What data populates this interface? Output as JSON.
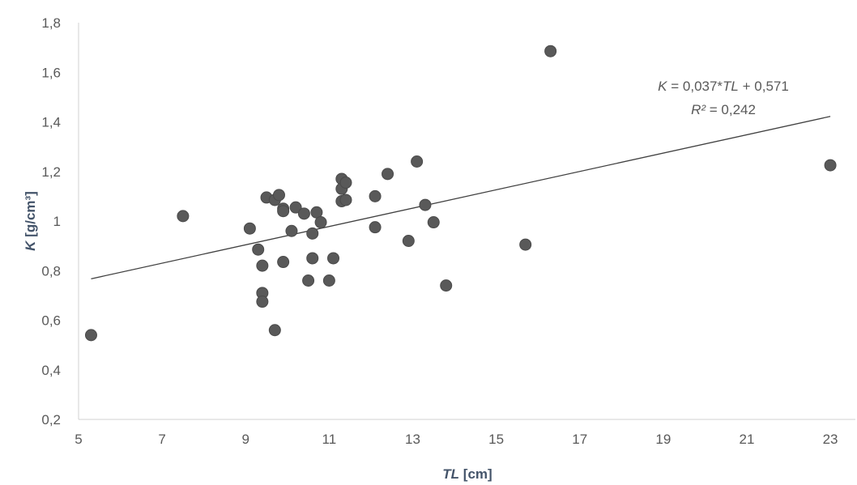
{
  "chart_data": {
    "type": "scatter",
    "xlabel": {
      "var": "TL",
      "unit": " [cm]"
    },
    "ylabel": {
      "var": "K",
      "unit": " [g/cm³]"
    },
    "xlim": [
      5,
      23.6
    ],
    "ylim": [
      0.2,
      1.8
    ],
    "x_ticks": [
      5,
      7,
      9,
      11,
      13,
      15,
      17,
      19,
      21,
      23
    ],
    "x_tick_labels": [
      "5",
      "7",
      "9",
      "11",
      "13",
      "15",
      "17",
      "19",
      "21",
      "23"
    ],
    "y_ticks": [
      0.2,
      0.4,
      0.6,
      0.8,
      1.0,
      1.2,
      1.4,
      1.6,
      1.8
    ],
    "y_tick_labels": [
      "0,2",
      "0,4",
      "0,6",
      "0,8",
      "1",
      "1,2",
      "1,4",
      "1,6",
      "1,8"
    ],
    "grid": false,
    "legend": "none",
    "marker_color": "#595959",
    "line_color": "#404040",
    "points": [
      {
        "x": 5.3,
        "y": 0.54
      },
      {
        "x": 7.5,
        "y": 1.02
      },
      {
        "x": 9.1,
        "y": 0.97
      },
      {
        "x": 9.3,
        "y": 0.885
      },
      {
        "x": 9.4,
        "y": 0.82
      },
      {
        "x": 9.4,
        "y": 0.71
      },
      {
        "x": 9.4,
        "y": 0.675
      },
      {
        "x": 9.5,
        "y": 1.095
      },
      {
        "x": 9.7,
        "y": 1.085
      },
      {
        "x": 9.7,
        "y": 0.56
      },
      {
        "x": 9.8,
        "y": 1.105
      },
      {
        "x": 9.9,
        "y": 1.05
      },
      {
        "x": 9.9,
        "y": 1.04
      },
      {
        "x": 9.9,
        "y": 0.835
      },
      {
        "x": 10.1,
        "y": 0.96
      },
      {
        "x": 10.2,
        "y": 1.055
      },
      {
        "x": 10.4,
        "y": 1.03
      },
      {
        "x": 10.5,
        "y": 0.76
      },
      {
        "x": 10.6,
        "y": 0.95
      },
      {
        "x": 10.6,
        "y": 0.85
      },
      {
        "x": 10.7,
        "y": 1.035
      },
      {
        "x": 10.8,
        "y": 0.995
      },
      {
        "x": 11.0,
        "y": 0.76
      },
      {
        "x": 11.1,
        "y": 0.85
      },
      {
        "x": 11.3,
        "y": 1.17
      },
      {
        "x": 11.3,
        "y": 1.13
      },
      {
        "x": 11.3,
        "y": 1.08
      },
      {
        "x": 11.4,
        "y": 1.155
      },
      {
        "x": 11.4,
        "y": 1.085
      },
      {
        "x": 12.1,
        "y": 1.1
      },
      {
        "x": 12.1,
        "y": 0.975
      },
      {
        "x": 12.4,
        "y": 1.19
      },
      {
        "x": 12.9,
        "y": 0.92
      },
      {
        "x": 13.1,
        "y": 1.24
      },
      {
        "x": 13.3,
        "y": 1.065
      },
      {
        "x": 13.5,
        "y": 0.995
      },
      {
        "x": 13.8,
        "y": 0.74
      },
      {
        "x": 15.7,
        "y": 0.905
      },
      {
        "x": 16.3,
        "y": 1.685
      },
      {
        "x": 23.0,
        "y": 1.225
      }
    ],
    "trendline": {
      "type": "linear",
      "slope": 0.037,
      "intercept": 0.571,
      "x_range": [
        5.3,
        23.0
      ],
      "equation": {
        "lhs": "K",
        "mid": " = 0,037*",
        "var": "TL",
        "rest": " + 0,571"
      },
      "r2": {
        "lhs": "R²",
        "rest": " = 0,242"
      }
    }
  }
}
